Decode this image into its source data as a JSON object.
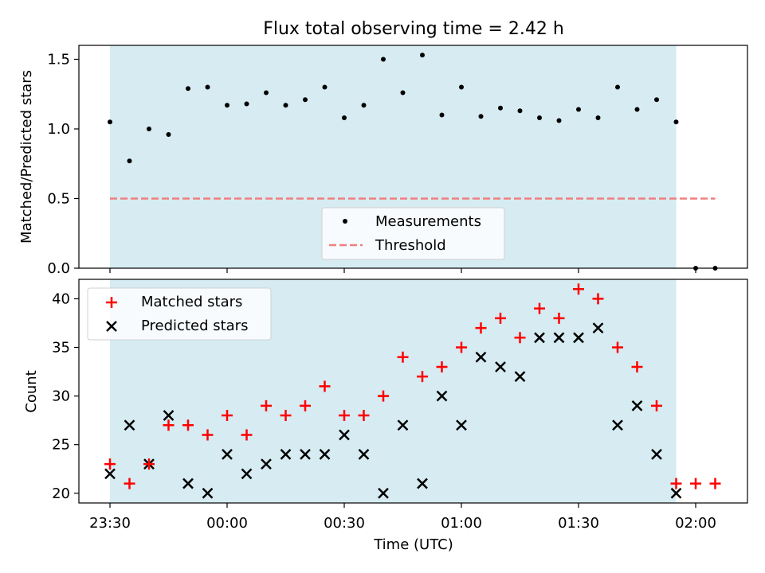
{
  "title": "Flux total observing time = 2.42 h",
  "colors": {
    "shade": "#add8e6",
    "measurement": "#000000",
    "threshold": "#f08080",
    "matched": "#ff0000",
    "predicted": "#000000"
  },
  "chart_data": [
    {
      "type": "scatter",
      "ylabel": "Matched/Predicted stars",
      "ylim": [
        0,
        1.6
      ],
      "yticks": [
        0.0,
        0.5,
        1.0,
        1.5
      ],
      "ytick_labels": [
        "0.0",
        "0.5",
        "1.0",
        "1.5"
      ],
      "shaded_span": [
        "23:30",
        "01:55"
      ],
      "legend": {
        "placement": "lower center",
        "entries": [
          "Measurements",
          "Threshold"
        ]
      },
      "series": [
        {
          "name": "Measurements",
          "marker": "dot",
          "x": [
            "23:30",
            "23:35",
            "23:40",
            "23:45",
            "23:50",
            "23:55",
            "00:00",
            "00:05",
            "00:10",
            "00:15",
            "00:20",
            "00:25",
            "00:30",
            "00:35",
            "00:40",
            "00:45",
            "00:50",
            "00:55",
            "01:00",
            "01:05",
            "01:10",
            "01:15",
            "01:20",
            "01:25",
            "01:30",
            "01:35",
            "01:40",
            "01:45",
            "01:50",
            "01:55",
            "02:00",
            "02:05"
          ],
          "y": [
            1.05,
            0.77,
            1.0,
            0.96,
            1.29,
            1.3,
            1.17,
            1.18,
            1.26,
            1.17,
            1.21,
            1.3,
            1.08,
            1.17,
            1.5,
            1.26,
            1.53,
            1.1,
            1.3,
            1.09,
            1.15,
            1.13,
            1.08,
            1.06,
            1.14,
            1.08,
            1.3,
            1.14,
            1.21,
            1.05,
            0.0,
            0.0
          ]
        },
        {
          "name": "Threshold",
          "style": "dashed",
          "x": [
            "23:30",
            "02:05"
          ],
          "y": [
            0.5,
            0.5
          ]
        }
      ]
    },
    {
      "type": "scatter",
      "xlabel": "Time (UTC)",
      "ylabel": "Count",
      "ylim": [
        19,
        42
      ],
      "yticks": [
        20,
        25,
        30,
        35,
        40
      ],
      "ytick_labels": [
        "20",
        "25",
        "30",
        "35",
        "40"
      ],
      "xticks": [
        "23:30",
        "00:00",
        "00:30",
        "01:00",
        "01:30",
        "02:00"
      ],
      "shaded_span": [
        "23:30",
        "01:55"
      ],
      "legend": {
        "placement": "upper left",
        "entries": [
          "Matched stars",
          "Predicted stars"
        ]
      },
      "series": [
        {
          "name": "Matched stars",
          "marker": "plus",
          "x": [
            "23:30",
            "23:35",
            "23:40",
            "23:45",
            "23:50",
            "23:55",
            "00:00",
            "00:05",
            "00:10",
            "00:15",
            "00:20",
            "00:25",
            "00:30",
            "00:35",
            "00:40",
            "00:45",
            "00:50",
            "00:55",
            "01:00",
            "01:05",
            "01:10",
            "01:15",
            "01:20",
            "01:25",
            "01:30",
            "01:35",
            "01:40",
            "01:45",
            "01:50",
            "01:55",
            "02:00",
            "02:05"
          ],
          "y": [
            23,
            21,
            23,
            27,
            27,
            26,
            28,
            26,
            29,
            28,
            29,
            31,
            28,
            28,
            30,
            34,
            32,
            33,
            35,
            37,
            38,
            36,
            39,
            38,
            41,
            40,
            35,
            33,
            29,
            21,
            21,
            21
          ]
        },
        {
          "name": "Predicted stars",
          "marker": "x",
          "x": [
            "23:30",
            "23:35",
            "23:40",
            "23:45",
            "23:50",
            "23:55",
            "00:00",
            "00:05",
            "00:10",
            "00:15",
            "00:20",
            "00:25",
            "00:30",
            "00:35",
            "00:40",
            "00:45",
            "00:50",
            "00:55",
            "01:00",
            "01:05",
            "01:10",
            "01:15",
            "01:20",
            "01:25",
            "01:30",
            "01:35",
            "01:40",
            "01:45",
            "01:50",
            "01:55"
          ],
          "y": [
            22,
            27,
            23,
            28,
            21,
            20,
            24,
            22,
            23,
            24,
            24,
            24,
            26,
            24,
            20,
            27,
            21,
            30,
            27,
            34,
            33,
            32,
            36,
            36,
            36,
            37,
            27,
            29,
            24,
            20
          ]
        }
      ]
    }
  ]
}
